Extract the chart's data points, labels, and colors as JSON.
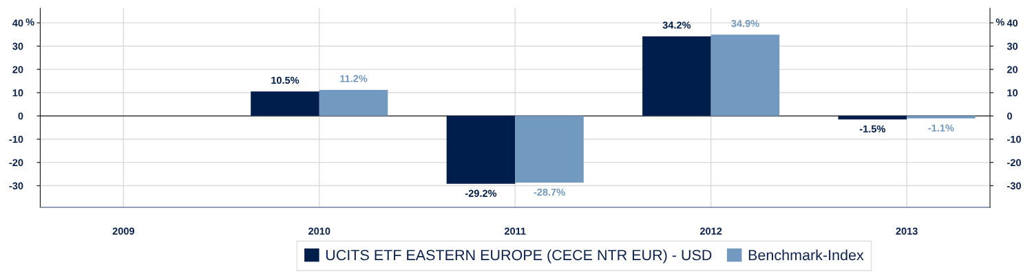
{
  "chart_data": {
    "type": "bar",
    "categories": [
      "2009",
      "2010",
      "2011",
      "2012",
      "2013"
    ],
    "series": [
      {
        "name": "UCITS ETF EASTERN EUROPE (CECE NTR EUR) - USD",
        "color": "#001e4b",
        "values": [
          null,
          10.5,
          -29.2,
          34.2,
          -1.5
        ],
        "value_labels": [
          null,
          "10.5%",
          "-29.2%",
          "34.2%",
          "-1.5%"
        ]
      },
      {
        "name": "Benchmark-Index",
        "color": "#7299bf",
        "values": [
          null,
          11.2,
          -28.7,
          34.9,
          -1.1
        ],
        "value_labels": [
          null,
          "11.2%",
          "-28.7%",
          "34.9%",
          "-1.1%"
        ]
      }
    ],
    "ylabel": "%",
    "y2label": "%",
    "ylim": [
      -39.3,
      46.3
    ],
    "yticks": [
      -30,
      -20,
      -10,
      0,
      10,
      20,
      30,
      40
    ],
    "y2lim": [
      -39.3,
      46.3
    ],
    "y2ticks": [
      -30,
      -20,
      -10,
      0,
      10,
      20,
      30,
      40
    ],
    "ref_lines": [
      {
        "axis": "y",
        "value": 0,
        "color": "#555555"
      }
    ],
    "grid": true,
    "legend": "bottom"
  }
}
